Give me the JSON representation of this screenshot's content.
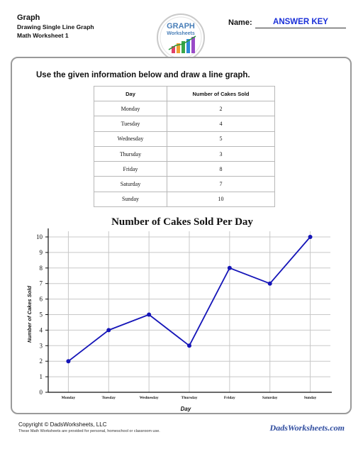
{
  "header": {
    "title": "Graph",
    "subtitle": "Drawing Single Line Graph",
    "worksheet": "Math Worksheet 1",
    "logo_text": [
      "GRAPH",
      "Worksheets"
    ],
    "name_label": "Name:",
    "name_value": "ANSWER KEY"
  },
  "instruction": "Use the given information below and draw a line graph.",
  "table": {
    "headers": [
      "Day",
      "Number of Cakes Sold"
    ],
    "rows": [
      [
        "Monday",
        "2"
      ],
      [
        "Tuesday",
        "4"
      ],
      [
        "Wednesday",
        "5"
      ],
      [
        "Thursday",
        "3"
      ],
      [
        "Friday",
        "8"
      ],
      [
        "Saturday",
        "7"
      ],
      [
        "Sunday",
        "10"
      ]
    ]
  },
  "chart_data": {
    "type": "line",
    "title": "Number of Cakes Sold Per Day",
    "xlabel": "Day",
    "ylabel": "Number of Cakes Sold",
    "categories": [
      "Monday",
      "Tuesday",
      "Wednesday",
      "Thursday",
      "Friday",
      "Saturday",
      "Sunday"
    ],
    "values": [
      2,
      4,
      5,
      3,
      8,
      7,
      10
    ],
    "ylim": [
      0,
      10
    ],
    "yticks": [
      0,
      1,
      2,
      3,
      4,
      5,
      6,
      7,
      8,
      9,
      10
    ],
    "grid": true,
    "line_color": "#1515b8"
  },
  "footer": {
    "copyright": "Copyright © DadsWorksheets, LLC",
    "disclaimer": "These Math Worksheets are provided for personal, homeschool or classroom use.",
    "brand": "DadsWorksheets.com"
  }
}
